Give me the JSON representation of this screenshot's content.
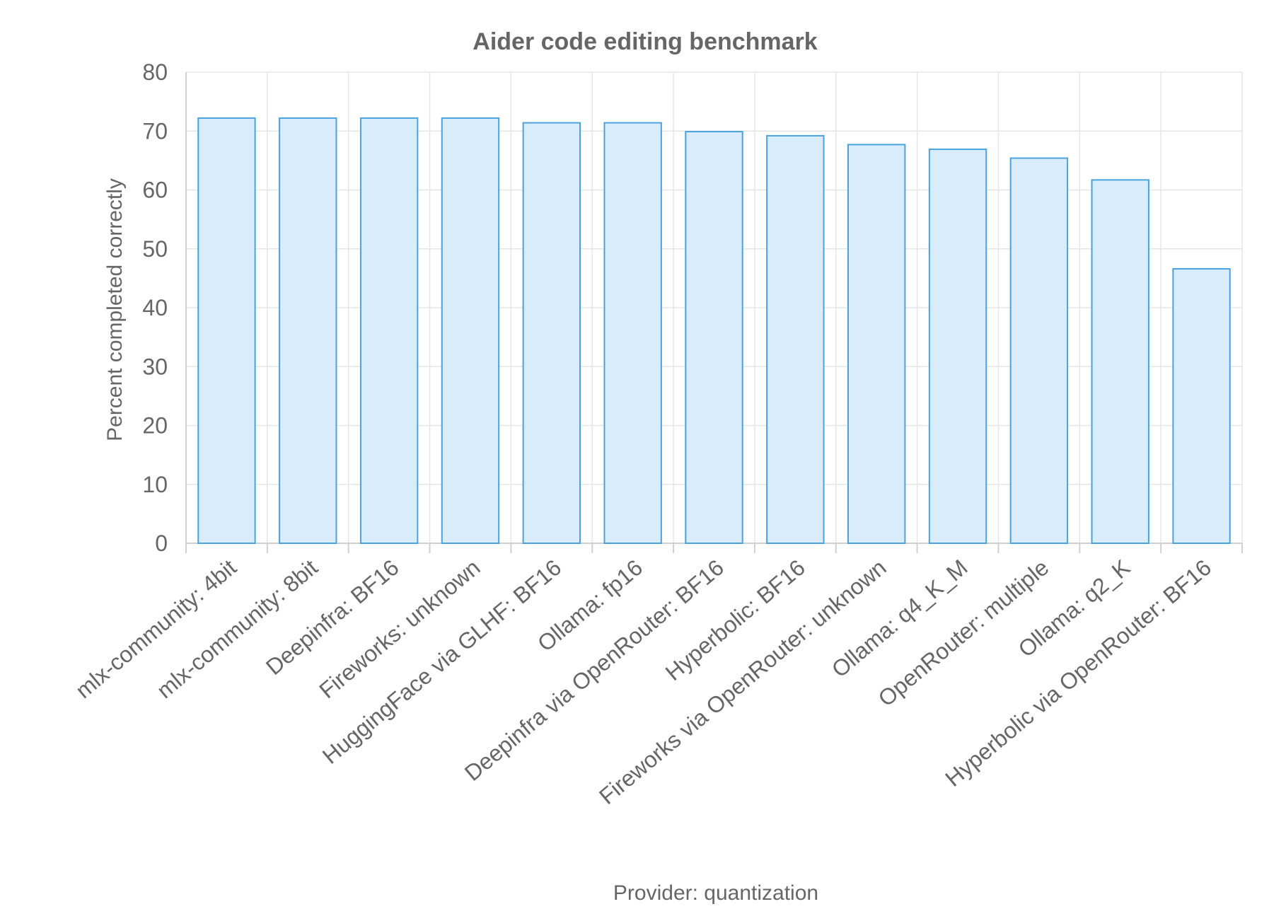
{
  "chart_data": {
    "type": "bar",
    "title": "Aider code editing benchmark",
    "xlabel": "Provider: quantization",
    "ylabel": "Percent completed correctly",
    "ylim": [
      0,
      80
    ],
    "yticks": [
      0,
      10,
      20,
      30,
      40,
      50,
      60,
      70,
      80
    ],
    "grid": true,
    "legend": "none",
    "categories": [
      "mlx-community: 4bit",
      "mlx-community: 8bit",
      "Deepinfra: BF16",
      "Fireworks: unknown",
      "HuggingFace via GLHF: BF16",
      "Ollama: fp16",
      "Deepinfra via OpenRouter: BF16",
      "Hyperbolic: BF16",
      "Fireworks via OpenRouter: unknown",
      "Ollama: q4_K_M",
      "OpenRouter: multiple",
      "Ollama: q2_K",
      "Hyperbolic via OpenRouter: BF16"
    ],
    "values": [
      72.2,
      72.2,
      72.2,
      72.2,
      71.4,
      71.4,
      69.9,
      69.2,
      67.7,
      66.9,
      65.4,
      61.7,
      46.6
    ],
    "colors": {
      "bar_fill": "#d9ecfb",
      "bar_stroke": "#4aa3df"
    }
  }
}
